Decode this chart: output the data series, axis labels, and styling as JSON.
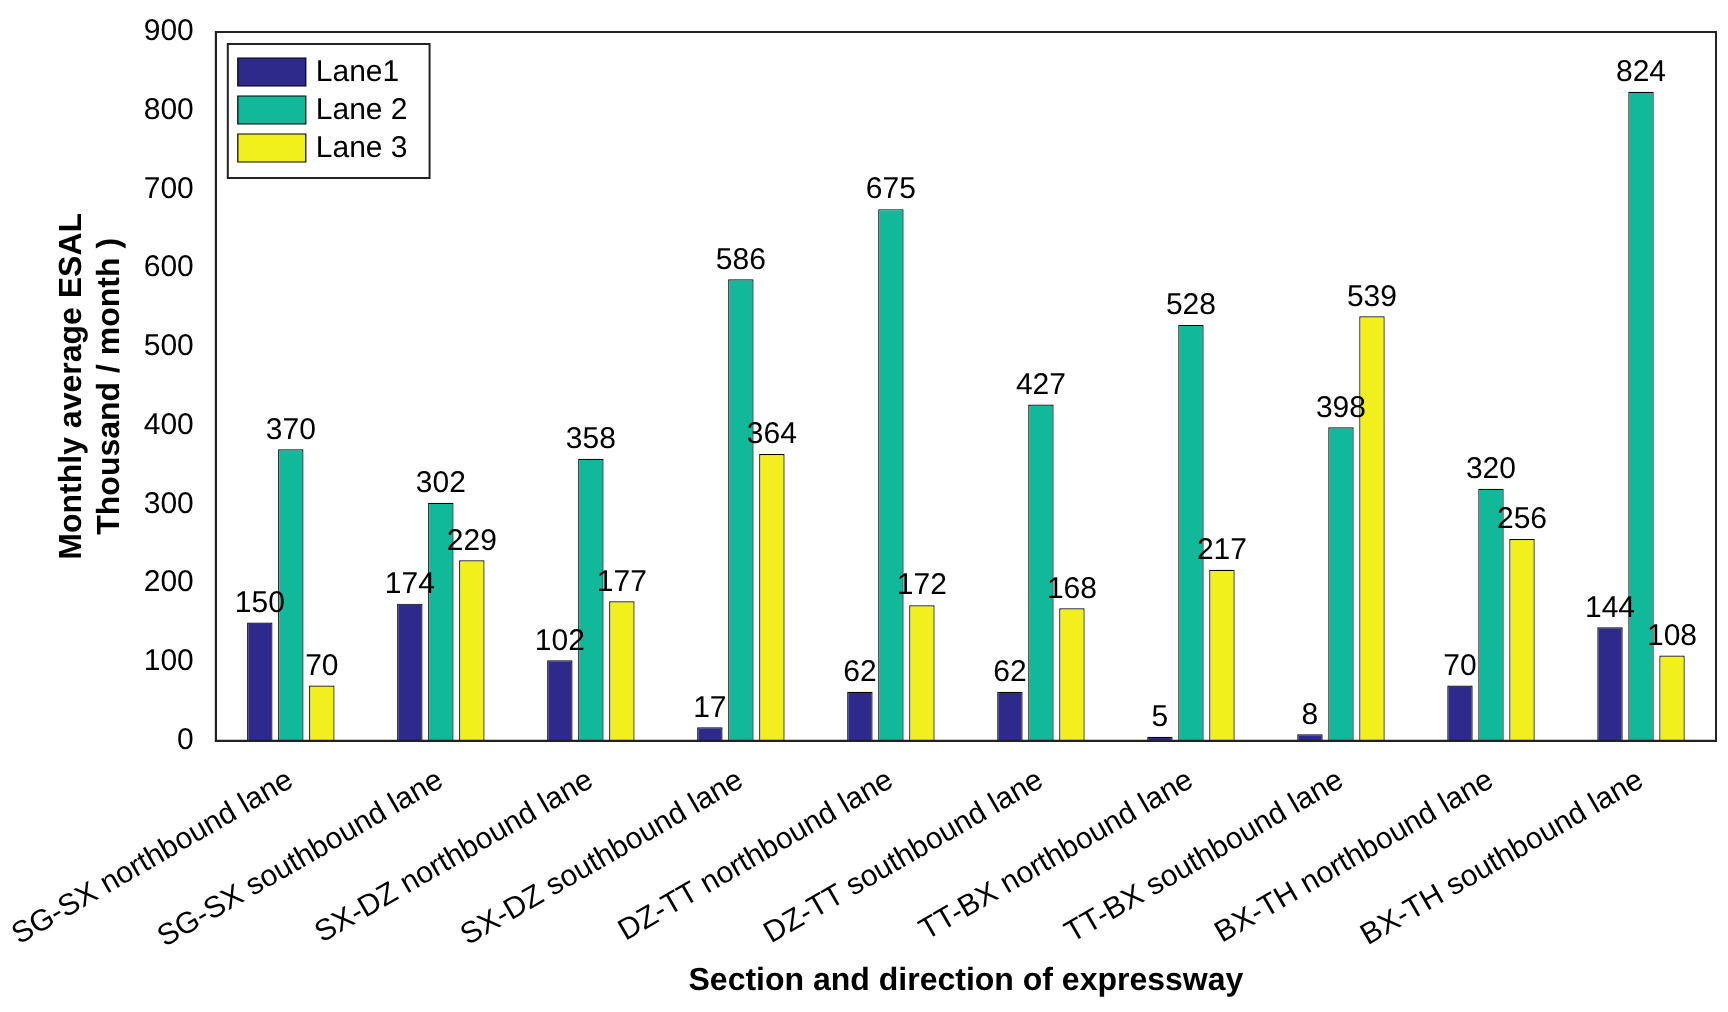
{
  "chart_data": {
    "type": "bar",
    "xlabel": "Section and direction of expressway",
    "ylabel": "Monthly average ESAL\nThousand / month )",
    "categories": [
      "SG-SX northbound lane",
      "SG-SX southbound lane",
      "SX-DZ northbound lane",
      "SX-DZ southbound lane",
      "DZ-TT northbound lane",
      "DZ-TT southbound lane",
      "TT-BX northbound lane",
      "TT-BX southbound lane",
      "BX-TH northbound lane",
      "BX-TH southbound lane"
    ],
    "series": [
      {
        "name": "Lane1",
        "color": "#2e2a8c",
        "values": [
          150,
          174,
          102,
          17,
          62,
          62,
          5,
          8,
          70,
          144
        ]
      },
      {
        "name": "Lane 2",
        "color": "#12b89a",
        "values": [
          370,
          302,
          358,
          586,
          675,
          427,
          528,
          398,
          320,
          824
        ]
      },
      {
        "name": "Lane 3",
        "color": "#f2f01c",
        "values": [
          70,
          229,
          177,
          364,
          172,
          168,
          217,
          539,
          256,
          108
        ]
      }
    ],
    "ylim": [
      0,
      900
    ],
    "yticks": [
      0,
      100,
      200,
      300,
      400,
      500,
      600,
      700,
      800,
      900
    ],
    "grid": false,
    "legend": "top left",
    "data_labels": true
  }
}
